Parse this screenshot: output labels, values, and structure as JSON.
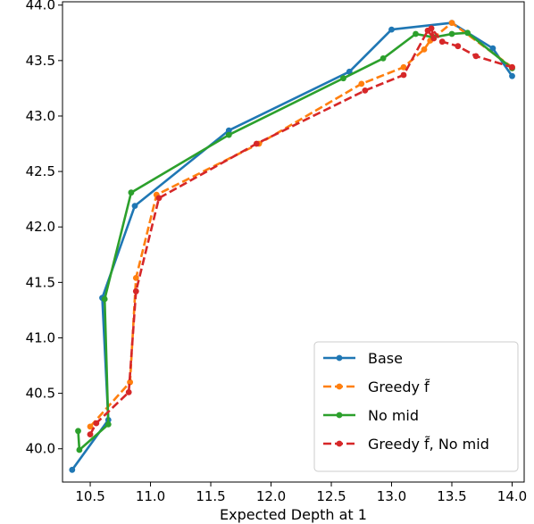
{
  "chart_data": {
    "type": "line",
    "title": "",
    "xlabel": "Expected Depth at 1",
    "ylabel": "",
    "xlim": [
      10.27,
      14.1
    ],
    "ylim": [
      39.7,
      44.03
    ],
    "x_ticks": [
      10.5,
      11.0,
      11.5,
      12.0,
      12.5,
      13.0,
      13.5,
      14.0
    ],
    "x_tick_labels": [
      "10.5",
      "11.0",
      "11.5",
      "12.0",
      "12.5",
      "13.0",
      "13.5",
      "14.0"
    ],
    "y_ticks": [
      40.0,
      40.5,
      41.0,
      41.5,
      42.0,
      42.5,
      43.0,
      43.5,
      44.0
    ],
    "y_tick_labels": [
      "40.0",
      "40.5",
      "41.0",
      "41.5",
      "42.0",
      "42.5",
      "43.0",
      "43.5",
      "44.0"
    ],
    "grid": false,
    "legend_position": "lower-right",
    "series": [
      {
        "name": "Base",
        "color": "#1f77b4",
        "dash": "solid",
        "points": [
          [
            10.35,
            39.81
          ],
          [
            10.65,
            40.26
          ],
          [
            10.6,
            41.36
          ],
          [
            10.87,
            42.19
          ],
          [
            11.65,
            42.87
          ],
          [
            12.65,
            43.4
          ],
          [
            13.0,
            43.78
          ],
          [
            13.5,
            43.84
          ],
          [
            13.84,
            43.61
          ],
          [
            14.0,
            43.36
          ]
        ]
      },
      {
        "name": "Greedy f̃",
        "color": "#ff7f0e",
        "dash": "dashed",
        "points": [
          [
            10.5,
            40.2
          ],
          [
            10.83,
            40.6
          ],
          [
            10.88,
            41.54
          ],
          [
            11.05,
            42.29
          ],
          [
            11.9,
            42.75
          ],
          [
            12.75,
            43.29
          ],
          [
            13.1,
            43.44
          ],
          [
            13.27,
            43.6
          ],
          [
            13.32,
            43.68
          ],
          [
            13.5,
            43.84
          ],
          [
            14.0,
            43.44
          ]
        ]
      },
      {
        "name": "No mid",
        "color": "#2ca02c",
        "dash": "solid",
        "points": [
          [
            10.4,
            40.16
          ],
          [
            10.41,
            39.99
          ],
          [
            10.65,
            40.22
          ],
          [
            10.62,
            41.35
          ],
          [
            10.84,
            42.31
          ],
          [
            11.65,
            42.83
          ],
          [
            12.6,
            43.34
          ],
          [
            12.93,
            43.52
          ],
          [
            13.2,
            43.74
          ],
          [
            13.35,
            43.71
          ],
          [
            13.5,
            43.74
          ],
          [
            13.63,
            43.75
          ],
          [
            14.0,
            43.43
          ]
        ]
      },
      {
        "name": "Greedy f̃, No mid",
        "color": "#d62728",
        "dash": "dashed",
        "points": [
          [
            10.5,
            40.13
          ],
          [
            10.55,
            40.23
          ],
          [
            10.82,
            40.51
          ],
          [
            10.88,
            41.42
          ],
          [
            11.07,
            42.26
          ],
          [
            11.88,
            42.75
          ],
          [
            12.78,
            43.23
          ],
          [
            13.1,
            43.37
          ],
          [
            13.3,
            43.77
          ],
          [
            13.35,
            43.7
          ],
          [
            13.33,
            43.79
          ],
          [
            13.42,
            43.67
          ],
          [
            13.55,
            43.63
          ],
          [
            13.7,
            43.54
          ],
          [
            14.0,
            43.44
          ]
        ]
      }
    ]
  }
}
